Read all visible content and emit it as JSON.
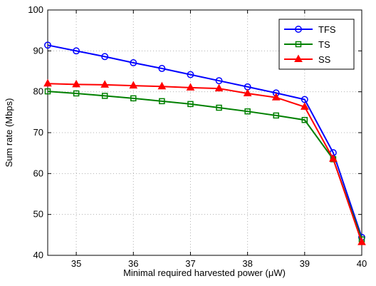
{
  "chart_data": {
    "type": "line",
    "title": "",
    "xlabel": "Minimal required harvested power (μW)",
    "ylabel": "Sum rate (Mbps)",
    "xlim": [
      34.5,
      40
    ],
    "ylim": [
      40,
      100
    ],
    "xticks": [
      "35",
      "36",
      "37",
      "38",
      "39",
      "40"
    ],
    "yticks": [
      "40",
      "50",
      "60",
      "70",
      "80",
      "90",
      "100"
    ],
    "grid": true,
    "legend_position": "top-right",
    "x": [
      34.5,
      35,
      35.5,
      36,
      36.5,
      37,
      37.5,
      38,
      38.5,
      39,
      39.5,
      40
    ],
    "series": [
      {
        "name": "TFS",
        "color": "#0000ff",
        "marker": "circle",
        "values": [
          91.4,
          90.0,
          88.6,
          87.1,
          85.7,
          84.2,
          82.7,
          81.2,
          79.7,
          78.1,
          65.1,
          44.4
        ]
      },
      {
        "name": "TS",
        "color": "#008000",
        "marker": "square",
        "values": [
          80.1,
          79.6,
          79.0,
          78.4,
          77.7,
          77.0,
          76.1,
          75.2,
          74.2,
          73.1,
          63.5,
          43.9
        ]
      },
      {
        "name": "SS",
        "color": "#ff0000",
        "marker": "triangle",
        "values": [
          82.0,
          81.8,
          81.7,
          81.5,
          81.3,
          81.0,
          80.8,
          79.6,
          78.6,
          76.3,
          63.6,
          43.2
        ]
      }
    ]
  }
}
